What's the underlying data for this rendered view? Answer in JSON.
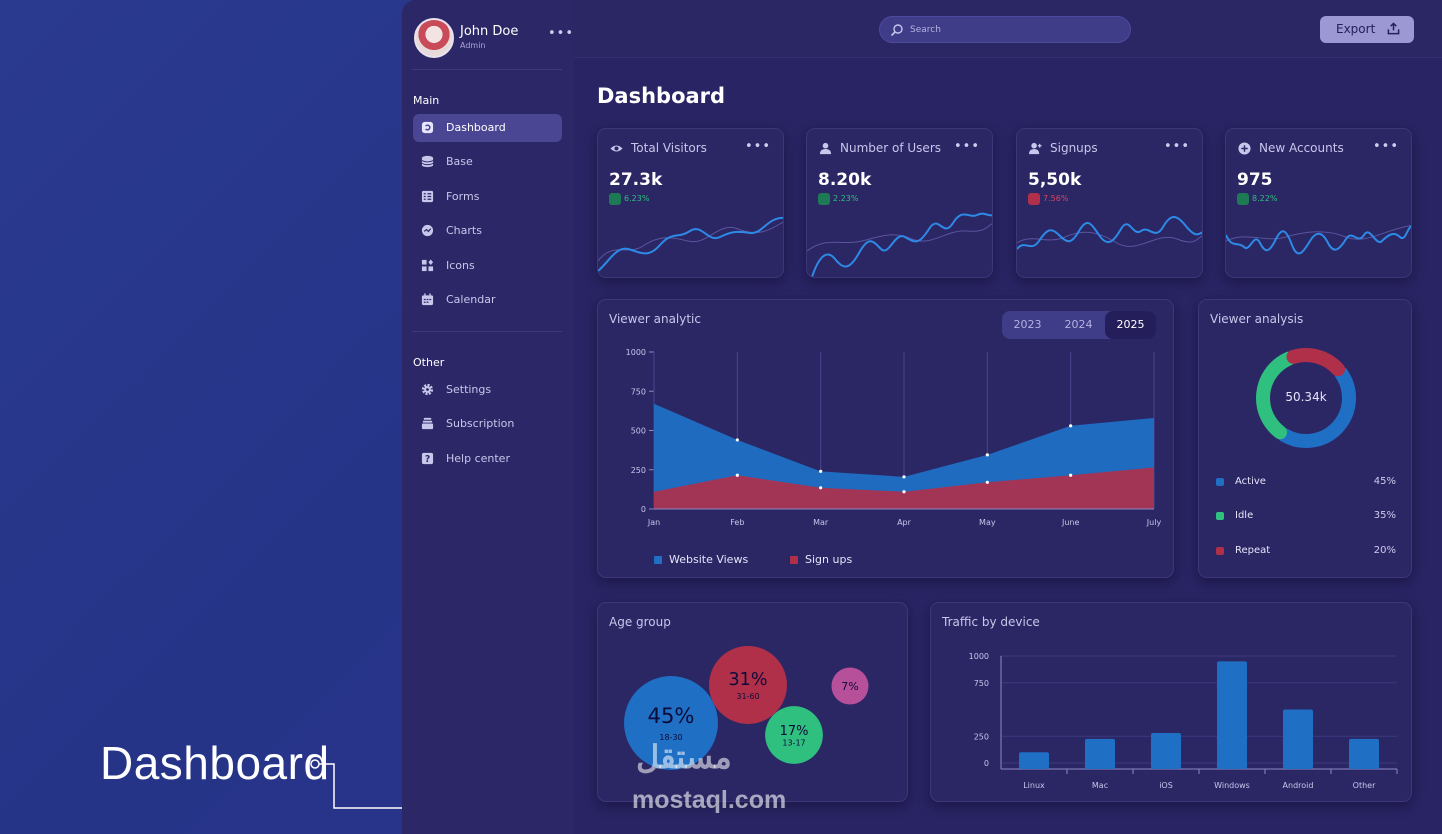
{
  "caption": "Dashboard",
  "user": {
    "name": "John Doe",
    "role": "Admin"
  },
  "sidebar": {
    "main_title": "Main",
    "main_items": [
      {
        "label": "Dashboard",
        "icon": "dashboard-icon",
        "active": true
      },
      {
        "label": "Base",
        "icon": "database-icon"
      },
      {
        "label": "Forms",
        "icon": "forms-icon"
      },
      {
        "label": "Charts",
        "icon": "charts-icon"
      },
      {
        "label": "Icons",
        "icon": "icons-icon"
      },
      {
        "label": "Calendar",
        "icon": "calendar-icon"
      }
    ],
    "other_title": "Other",
    "other_items": [
      {
        "label": "Settings",
        "icon": "gear-icon"
      },
      {
        "label": "Subscription",
        "icon": "subscription-icon"
      },
      {
        "label": "Help center",
        "icon": "help-icon"
      }
    ]
  },
  "topbar": {
    "search_placeholder": "Search",
    "export_label": "Export"
  },
  "page": {
    "title": "Dashboard"
  },
  "stats": [
    {
      "title": "Total Visitors",
      "value": "27.3k",
      "change": "6.23%",
      "trend": "up",
      "icon": "eye-icon"
    },
    {
      "title": "Number of Users",
      "value": "8.20k",
      "change": "2.23%",
      "trend": "up",
      "icon": "user-icon"
    },
    {
      "title": "Signups",
      "value": "5,50k",
      "change": "7.56%",
      "trend": "down",
      "icon": "user-plus-icon"
    },
    {
      "title": "New Accounts",
      "value": "975",
      "change": "8.22%",
      "trend": "up",
      "icon": "plus-circle-icon"
    }
  ],
  "colors": {
    "blue": "#1f6fc4",
    "red": "#b0304a",
    "green": "#2fbf7f",
    "pink": "#b6509b",
    "up": "#2fbf7f",
    "down": "#e0435f"
  },
  "viewer_analytic": {
    "title": "Viewer analytic",
    "years": [
      "2023",
      "2024",
      "2025"
    ],
    "active_year": "2025"
  },
  "viewer_analysis": {
    "title": "Viewer analysis",
    "total": "50.34k",
    "items": [
      {
        "label": "Active",
        "value": "45%"
      },
      {
        "label": "Idle",
        "value": "35%"
      },
      {
        "label": "Repeat",
        "value": "20%"
      }
    ]
  },
  "age_group": {
    "title": "Age group",
    "bubbles": [
      {
        "pct": "45%",
        "range": "18-30"
      },
      {
        "pct": "31%",
        "range": "31-60"
      },
      {
        "pct": "17%",
        "range": "13-17"
      },
      {
        "pct": "7%",
        "range": ""
      }
    ]
  },
  "traffic": {
    "title": "Traffic by device"
  },
  "watermark": {
    "arabic": "مستقل",
    "latin": "mostaql.com"
  },
  "chart_data": [
    {
      "type": "area",
      "title": "Viewer analytic",
      "categories": [
        "Jan",
        "Feb",
        "Mar",
        "Apr",
        "May",
        "June",
        "July"
      ],
      "ylim": [
        0,
        1000
      ],
      "yticks": [
        0,
        250,
        500,
        750,
        1000
      ],
      "series": [
        {
          "name": "Website Views",
          "values": [
            670,
            440,
            240,
            205,
            345,
            530,
            580
          ]
        },
        {
          "name": "Sign ups",
          "values": [
            110,
            215,
            135,
            110,
            170,
            215,
            265
          ]
        }
      ],
      "legend": "bottom"
    },
    {
      "type": "pie",
      "title": "Viewer analysis",
      "labels": [
        "Active",
        "Idle",
        "Repeat"
      ],
      "values": [
        45,
        35,
        20
      ]
    },
    {
      "type": "scatter",
      "title": "Age group",
      "labels": [
        "18-30",
        "31-60",
        "13-17",
        ""
      ],
      "values": [
        45,
        31,
        17,
        7
      ]
    },
    {
      "type": "bar",
      "title": "Traffic by device",
      "categories": [
        "Linux",
        "Mac",
        "iOS",
        "Windows",
        "Android",
        "Other"
      ],
      "values": [
        100,
        225,
        280,
        950,
        500,
        225
      ],
      "ylim": [
        0,
        1000
      ],
      "yticks": [
        0,
        250,
        750,
        1000
      ]
    }
  ]
}
